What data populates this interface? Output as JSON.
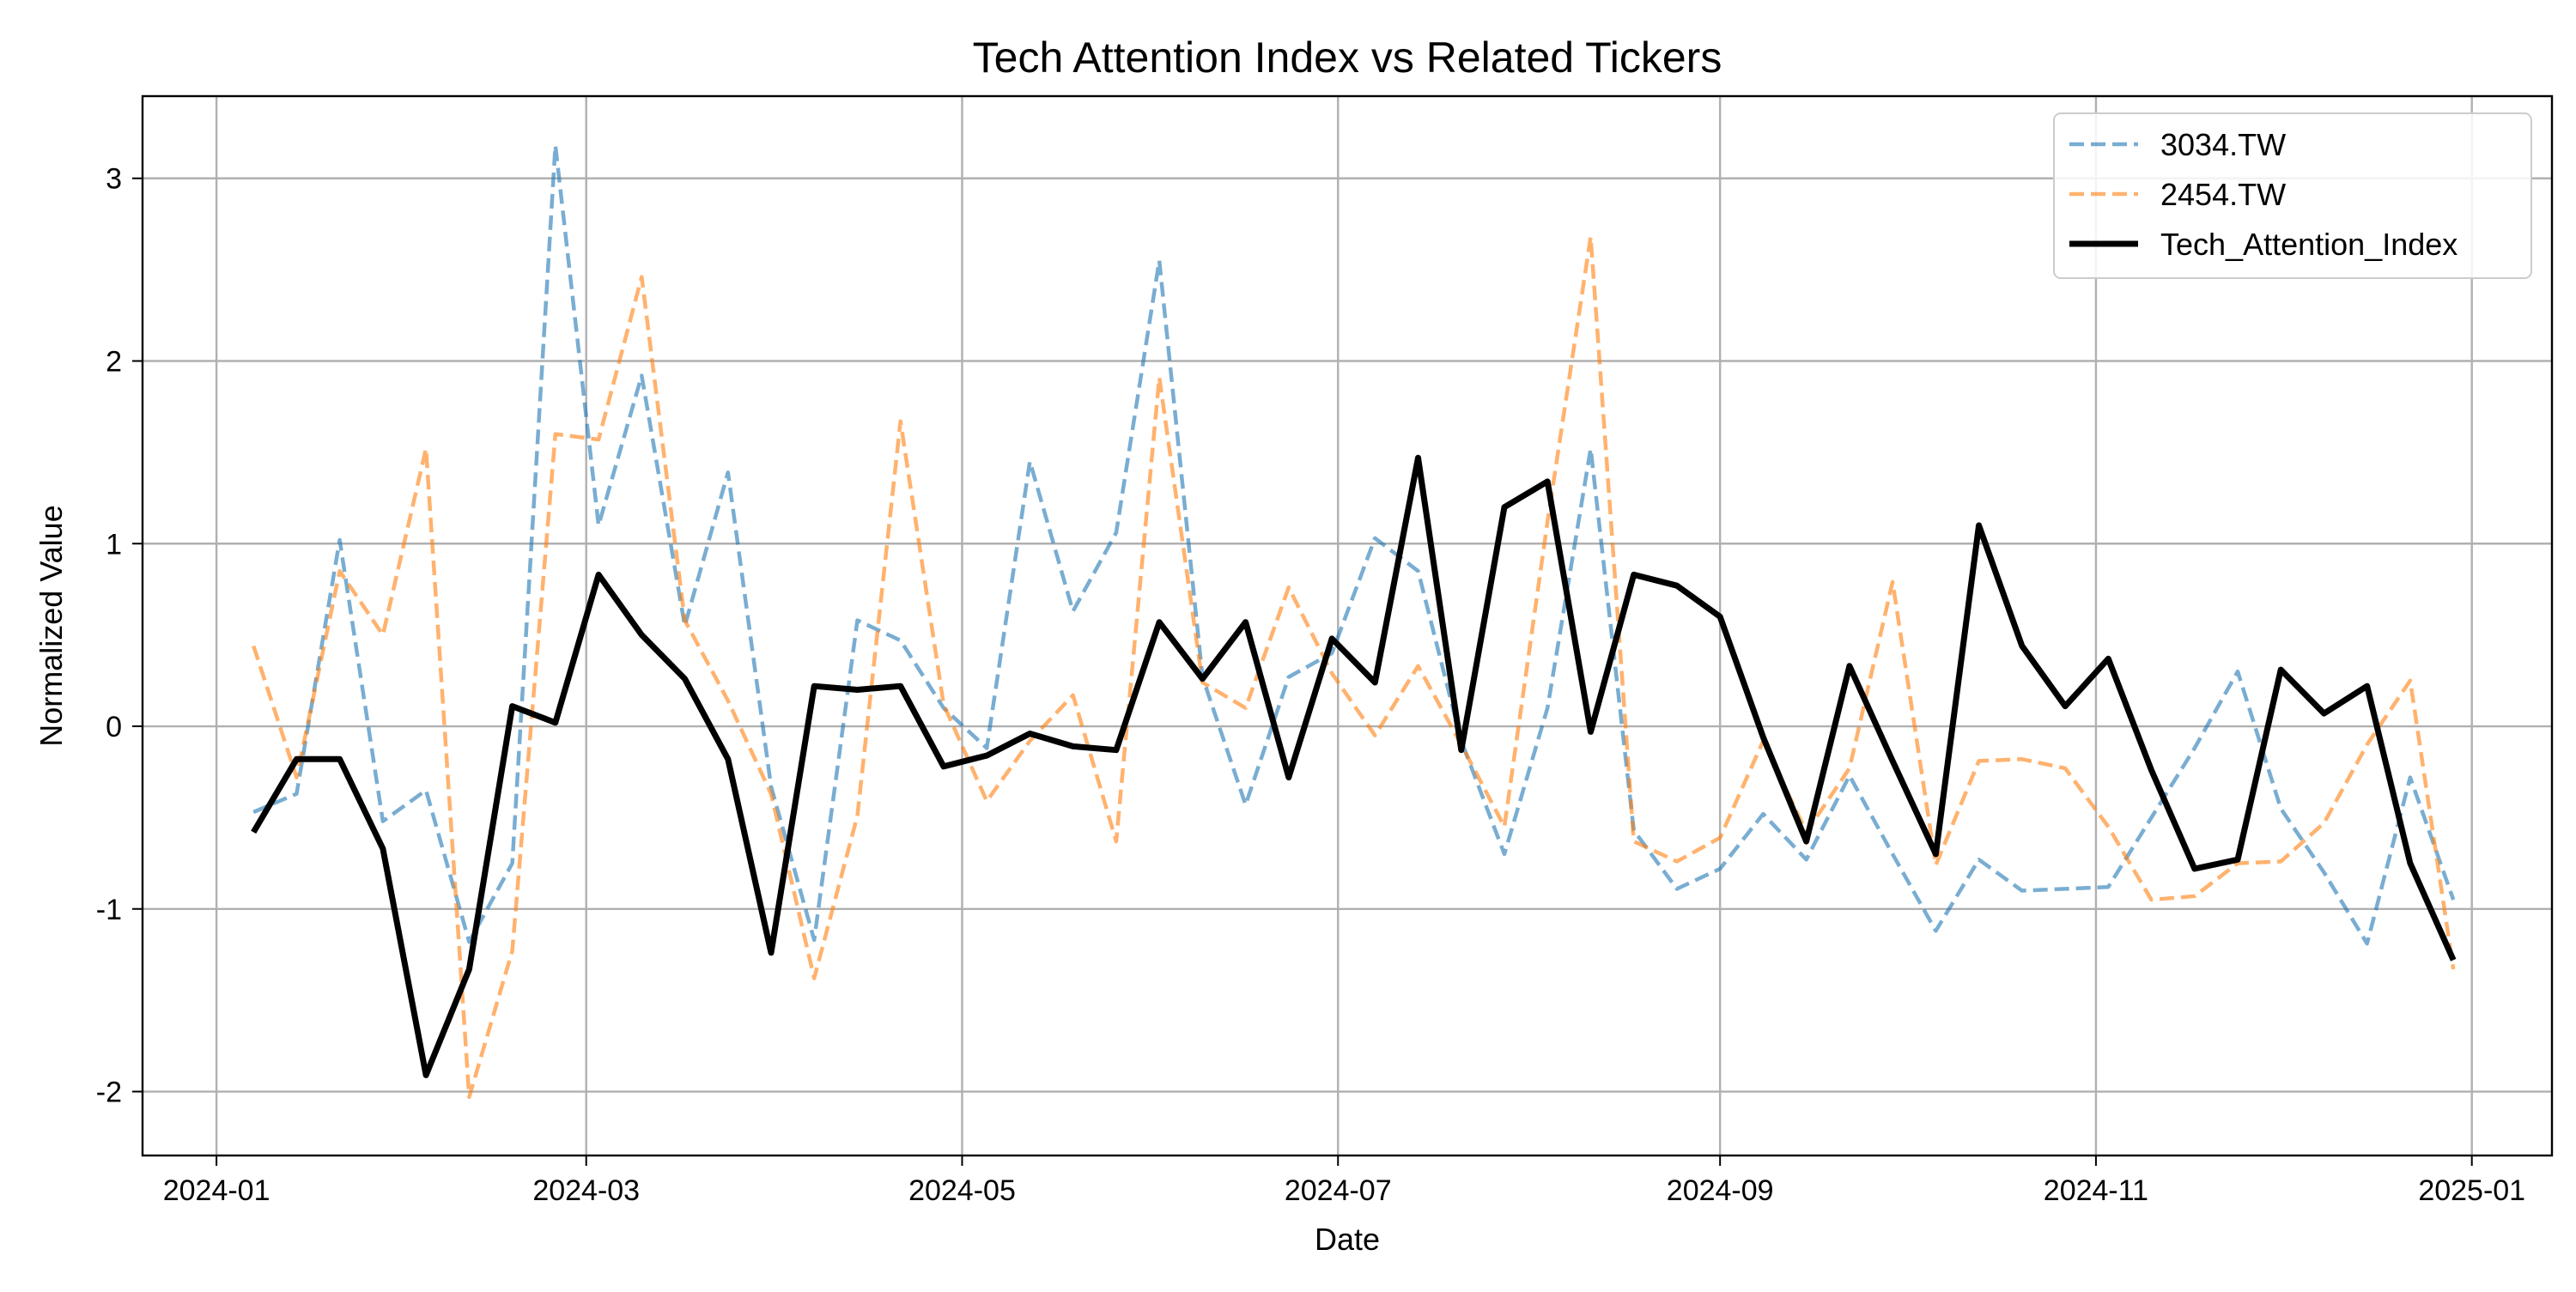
{
  "chart_data": {
    "type": "line",
    "title": "Tech Attention Index vs Related Tickers",
    "xlabel": "Date",
    "ylabel": "Normalized Value",
    "xlim": [
      "2023-12-20",
      "2025-01-14"
    ],
    "ylim": [
      -2.35,
      3.45
    ],
    "x_ticks": [
      "2024-01-01",
      "2024-03-01",
      "2024-05-01",
      "2024-07-01",
      "2024-09-01",
      "2024-11-01",
      "2025-01-01"
    ],
    "x_tick_labels": [
      "2024-01",
      "2024-03",
      "2024-05",
      "2024-07",
      "2024-09",
      "2024-11",
      "2025-01"
    ],
    "y_ticks": [
      -2,
      -1,
      0,
      1,
      2,
      3
    ],
    "y_tick_labels": [
      "-2",
      "-1",
      "0",
      "1",
      "2",
      "3"
    ],
    "grid": true,
    "legend_position": "top-right",
    "x": [
      "2024-01-07",
      "2024-01-14",
      "2024-01-21",
      "2024-01-28",
      "2024-02-04",
      "2024-02-11",
      "2024-02-18",
      "2024-02-25",
      "2024-03-03",
      "2024-03-10",
      "2024-03-17",
      "2024-03-24",
      "2024-03-31",
      "2024-04-07",
      "2024-04-14",
      "2024-04-21",
      "2024-04-28",
      "2024-05-05",
      "2024-05-12",
      "2024-05-19",
      "2024-05-26",
      "2024-06-02",
      "2024-06-09",
      "2024-06-16",
      "2024-06-23",
      "2024-06-30",
      "2024-07-07",
      "2024-07-14",
      "2024-07-21",
      "2024-07-28",
      "2024-08-04",
      "2024-08-11",
      "2024-08-18",
      "2024-08-25",
      "2024-09-01",
      "2024-09-08",
      "2024-09-15",
      "2024-09-22",
      "2024-09-29",
      "2024-10-06",
      "2024-10-13",
      "2024-10-20",
      "2024-10-27",
      "2024-11-03",
      "2024-11-10",
      "2024-11-17",
      "2024-11-24",
      "2024-12-01",
      "2024-12-08",
      "2024-12-15",
      "2024-12-22",
      "2024-12-29"
    ],
    "series": [
      {
        "name": "3034.TW",
        "color": "#1f77b4",
        "alpha": 0.6,
        "style": "dashed",
        "values": [
          -0.47,
          -0.37,
          1.02,
          -0.52,
          -0.35,
          -1.18,
          -0.75,
          3.18,
          1.1,
          1.92,
          0.55,
          1.39,
          -0.33,
          -1.17,
          0.58,
          0.47,
          0.1,
          -0.12,
          1.45,
          0.63,
          1.06,
          2.55,
          0.27,
          -0.43,
          0.27,
          0.4,
          1.03,
          0.85,
          -0.08,
          -0.7,
          0.1,
          1.52,
          -0.57,
          -0.89,
          -0.78,
          -0.48,
          -0.73,
          -0.27,
          -0.7,
          -1.12,
          -0.73,
          -0.9,
          -0.89,
          -0.88,
          -0.5,
          -0.12,
          0.3,
          -0.45,
          -0.8,
          -1.19,
          -0.28,
          -0.95
        ]
      },
      {
        "name": "2454.TW",
        "color": "#ff7f0e",
        "alpha": 0.6,
        "style": "dashed",
        "values": [
          0.44,
          -0.28,
          0.85,
          0.5,
          1.52,
          -2.03,
          -1.23,
          1.6,
          1.57,
          2.46,
          0.58,
          0.14,
          -0.37,
          -1.38,
          -0.49,
          1.67,
          0.12,
          -0.41,
          -0.08,
          0.17,
          -0.63,
          1.91,
          0.24,
          0.1,
          0.76,
          0.29,
          -0.05,
          0.33,
          -0.1,
          -0.55,
          1.12,
          2.68,
          -0.63,
          -0.74,
          -0.61,
          -0.08,
          -0.58,
          -0.23,
          0.79,
          -0.76,
          -0.19,
          -0.18,
          -0.23,
          -0.55,
          -0.95,
          -0.93,
          -0.75,
          -0.74,
          -0.53,
          -0.1,
          0.25,
          -1.33
        ]
      },
      {
        "name": "Tech_Attention_Index",
        "color": "#000000",
        "alpha": 1.0,
        "style": "solid",
        "values": [
          -0.58,
          -0.18,
          -0.18,
          -0.67,
          -1.91,
          -1.33,
          0.11,
          0.02,
          0.83,
          0.5,
          0.26,
          -0.18,
          -1.24,
          0.22,
          0.2,
          0.22,
          -0.22,
          -0.16,
          -0.04,
          -0.11,
          -0.13,
          0.57,
          0.26,
          0.57,
          -0.28,
          0.48,
          0.24,
          1.47,
          -0.13,
          1.2,
          1.34,
          -0.03,
          0.83,
          0.77,
          0.6,
          -0.06,
          -0.63,
          0.33,
          -0.19,
          -0.7,
          1.1,
          0.44,
          0.11,
          0.37,
          -0.24,
          -0.78,
          -0.73,
          0.31,
          0.07,
          0.22,
          -0.75,
          -1.28
        ]
      }
    ]
  }
}
